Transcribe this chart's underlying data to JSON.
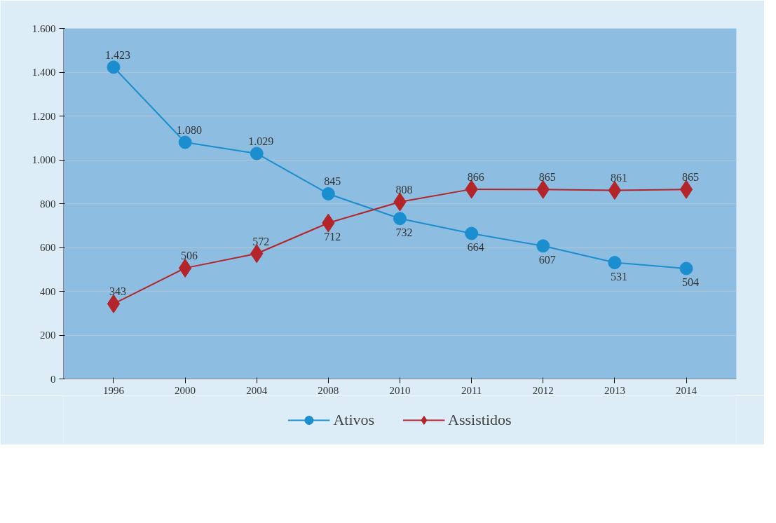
{
  "chart_data": {
    "type": "line",
    "categories": [
      "1996",
      "2000",
      "2004",
      "2008",
      "2010",
      "2011",
      "2012",
      "2013",
      "2014"
    ],
    "series": [
      {
        "name": "Ativos",
        "color": "#1b8ed0",
        "marker": "circle",
        "values": [
          1423,
          1080,
          1029,
          845,
          732,
          664,
          607,
          531,
          504
        ],
        "value_labels": [
          "1.423",
          "1.080",
          "1.029",
          "845",
          "732",
          "664",
          "607",
          "531",
          "504"
        ]
      },
      {
        "name": "Assistidos",
        "color": "#b3242b",
        "marker": "diamond",
        "values": [
          343,
          506,
          572,
          712,
          808,
          866,
          865,
          861,
          865
        ],
        "value_labels": [
          "343",
          "506",
          "572",
          "712",
          "808",
          "866",
          "865",
          "861",
          "865"
        ]
      }
    ],
    "ylim": [
      0,
      1600
    ],
    "yticks": [
      0,
      200,
      400,
      600,
      800,
      {
        "value": 1000,
        "label": "1.000"
      },
      {
        "value": 1200,
        "label": "1.200"
      },
      {
        "value": 1400,
        "label": "1.400"
      },
      {
        "value": 1600,
        "label": "1.600"
      }
    ],
    "grid": "y",
    "legend": "bottom",
    "line_style": "solid"
  }
}
